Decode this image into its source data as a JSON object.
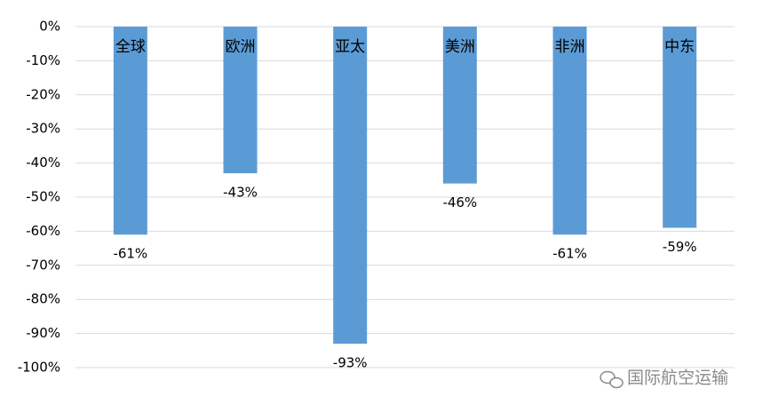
{
  "chart_data": {
    "type": "bar",
    "categories": [
      "全球",
      "欧洲",
      "亚太",
      "美洲",
      "非洲",
      "中东"
    ],
    "values": [
      -61,
      -43,
      -93,
      -46,
      -61,
      -59
    ],
    "value_labels": [
      "-61%",
      "-43%",
      "-93%",
      "-46%",
      "-61%",
      "-59%"
    ],
    "color": "#5b9bd5",
    "ylim": [
      -100,
      0
    ],
    "yticks": [
      {
        "value": 0,
        "label": "0%"
      },
      {
        "value": -10,
        "label": "-10%"
      },
      {
        "value": -20,
        "label": "-20%"
      },
      {
        "value": -30,
        "label": "-30%"
      },
      {
        "value": -40,
        "label": "-40%"
      },
      {
        "value": -50,
        "label": "-50%"
      },
      {
        "value": -60,
        "label": "-60%"
      },
      {
        "value": -70,
        "label": "-70%"
      },
      {
        "value": -80,
        "label": "-80%"
      },
      {
        "value": -90,
        "label": "-90%"
      },
      {
        "value": -100,
        "label": "-100%"
      }
    ],
    "grid": true
  },
  "watermark": "国际航空运输"
}
